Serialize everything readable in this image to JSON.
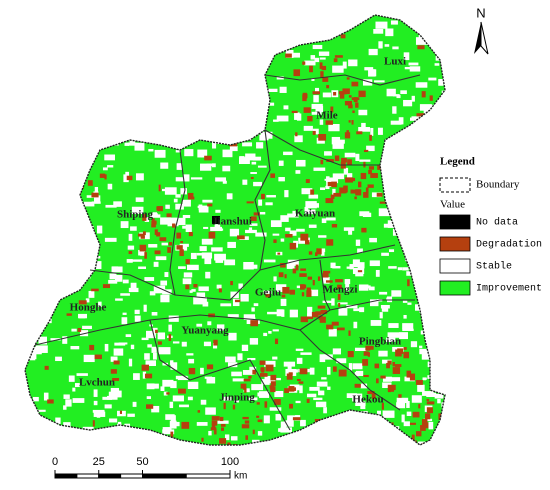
{
  "north_label": "N",
  "map": {
    "regions": [
      {
        "label": "Luxi"
      },
      {
        "label": "Mile"
      },
      {
        "label": "Shiping"
      },
      {
        "label": "Jianshui"
      },
      {
        "label": "Kaiyuan"
      },
      {
        "label": "Gejiu"
      },
      {
        "label": "Mengzi"
      },
      {
        "label": "Honghe"
      },
      {
        "label": "Yuanyang"
      },
      {
        "label": "Pingbian"
      },
      {
        "label": "Lvchun"
      },
      {
        "label": "Jinping"
      },
      {
        "label": "Hekou"
      }
    ]
  },
  "legend": {
    "title": "Legend",
    "boundary": "Boundary",
    "value_title": "Value",
    "items": [
      {
        "label": "No data",
        "color": "#000000"
      },
      {
        "label": "Degradation",
        "color": "#b5400f"
      },
      {
        "label": "Stable",
        "color": "#ffffff"
      },
      {
        "label": "Improvement",
        "color": "#22ee22"
      }
    ]
  },
  "scale_bar": {
    "ticks": [
      0,
      25,
      50,
      100
    ],
    "unit": "km"
  }
}
